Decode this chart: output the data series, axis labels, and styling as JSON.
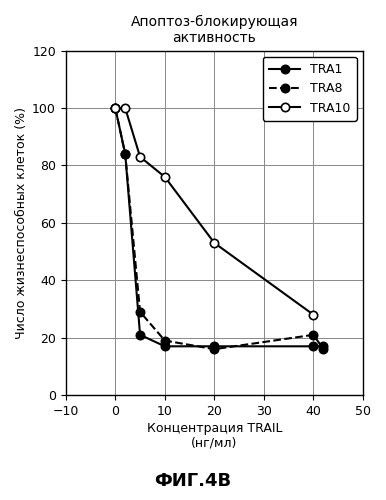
{
  "title": "Апоптоз-блокирующая\nактивность",
  "xlabel": "Концентрация TRAIL\n(нг/мл)",
  "ylabel": "Число жизнеспособных клеток (%)",
  "caption": "ФИГ.4В",
  "xlim": [
    -10,
    50
  ],
  "ylim": [
    0,
    120
  ],
  "xticks": [
    -10,
    0,
    10,
    20,
    30,
    40,
    50
  ],
  "yticks": [
    0,
    20,
    40,
    60,
    80,
    100,
    120
  ],
  "series": [
    {
      "label": "TRA1",
      "x": [
        0,
        2,
        5,
        10,
        20,
        40,
        42
      ],
      "y": [
        100,
        84,
        21,
        17,
        17,
        17,
        17
      ],
      "color": "#000000",
      "linestyle": "-",
      "marker": "o",
      "markerfacecolor": "#000000",
      "markersize": 6,
      "linewidth": 1.5
    },
    {
      "label": "TRA8",
      "x": [
        0,
        2,
        5,
        10,
        20,
        40,
        42
      ],
      "y": [
        100,
        84,
        29,
        19,
        16,
        21,
        16
      ],
      "color": "#000000",
      "linestyle": "--",
      "marker": "o",
      "markerfacecolor": "#000000",
      "markersize": 6,
      "linewidth": 1.5
    },
    {
      "label": "TRA10",
      "x": [
        0,
        2,
        5,
        10,
        20,
        40
      ],
      "y": [
        100,
        100,
        83,
        76,
        53,
        28
      ],
      "color": "#000000",
      "linestyle": "-",
      "marker": "o",
      "markerfacecolor": "#ffffff",
      "markersize": 6,
      "linewidth": 1.5
    }
  ],
  "grid": true,
  "background_color": "#ffffff",
  "title_fontsize": 10,
  "label_fontsize": 9,
  "tick_fontsize": 9,
  "legend_fontsize": 9,
  "caption_fontsize": 13
}
